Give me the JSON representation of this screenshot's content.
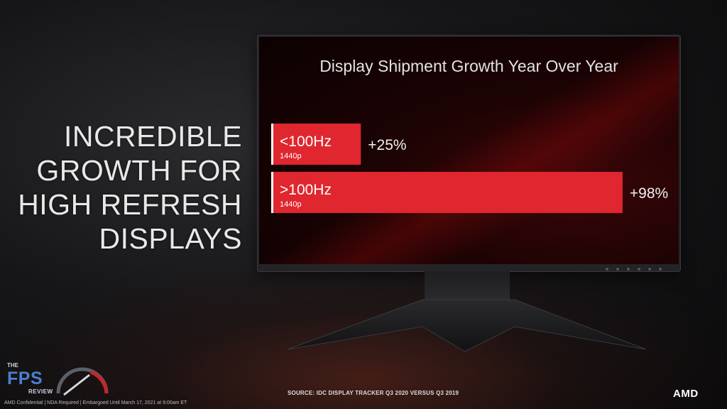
{
  "headline": "INCREDIBLE\nGROWTH FOR\nHIGH REFRESH\nDISPLAYS",
  "chart_data": {
    "type": "bar",
    "orientation": "horizontal",
    "title": "Display Shipment Growth Year Over Year",
    "categories": [
      {
        "label": "<100Hz",
        "sublabel": "1440p"
      },
      {
        "label": ">100Hz",
        "sublabel": "1440p"
      }
    ],
    "values": [
      25,
      98
    ],
    "value_labels": [
      "+25%",
      "+98%"
    ],
    "unit": "%",
    "xlim": [
      0,
      100
    ],
    "grid": false,
    "legend": "none",
    "bar_color": "#e0262e"
  },
  "source_note": "SOURCE: IDC DISPLAY TRACKER Q3 2020 VERSUS Q3 2019",
  "footer_text": "AMD Confidential | NDA Required | Embargoed Until March 17, 2021 at 9:00am ET",
  "watermark": {
    "top": "THE",
    "main": "FPS",
    "bottom": "REVIEW"
  },
  "brand_logo": "AMD",
  "colors": {
    "accent": "#e0262e",
    "background": "#161618"
  }
}
